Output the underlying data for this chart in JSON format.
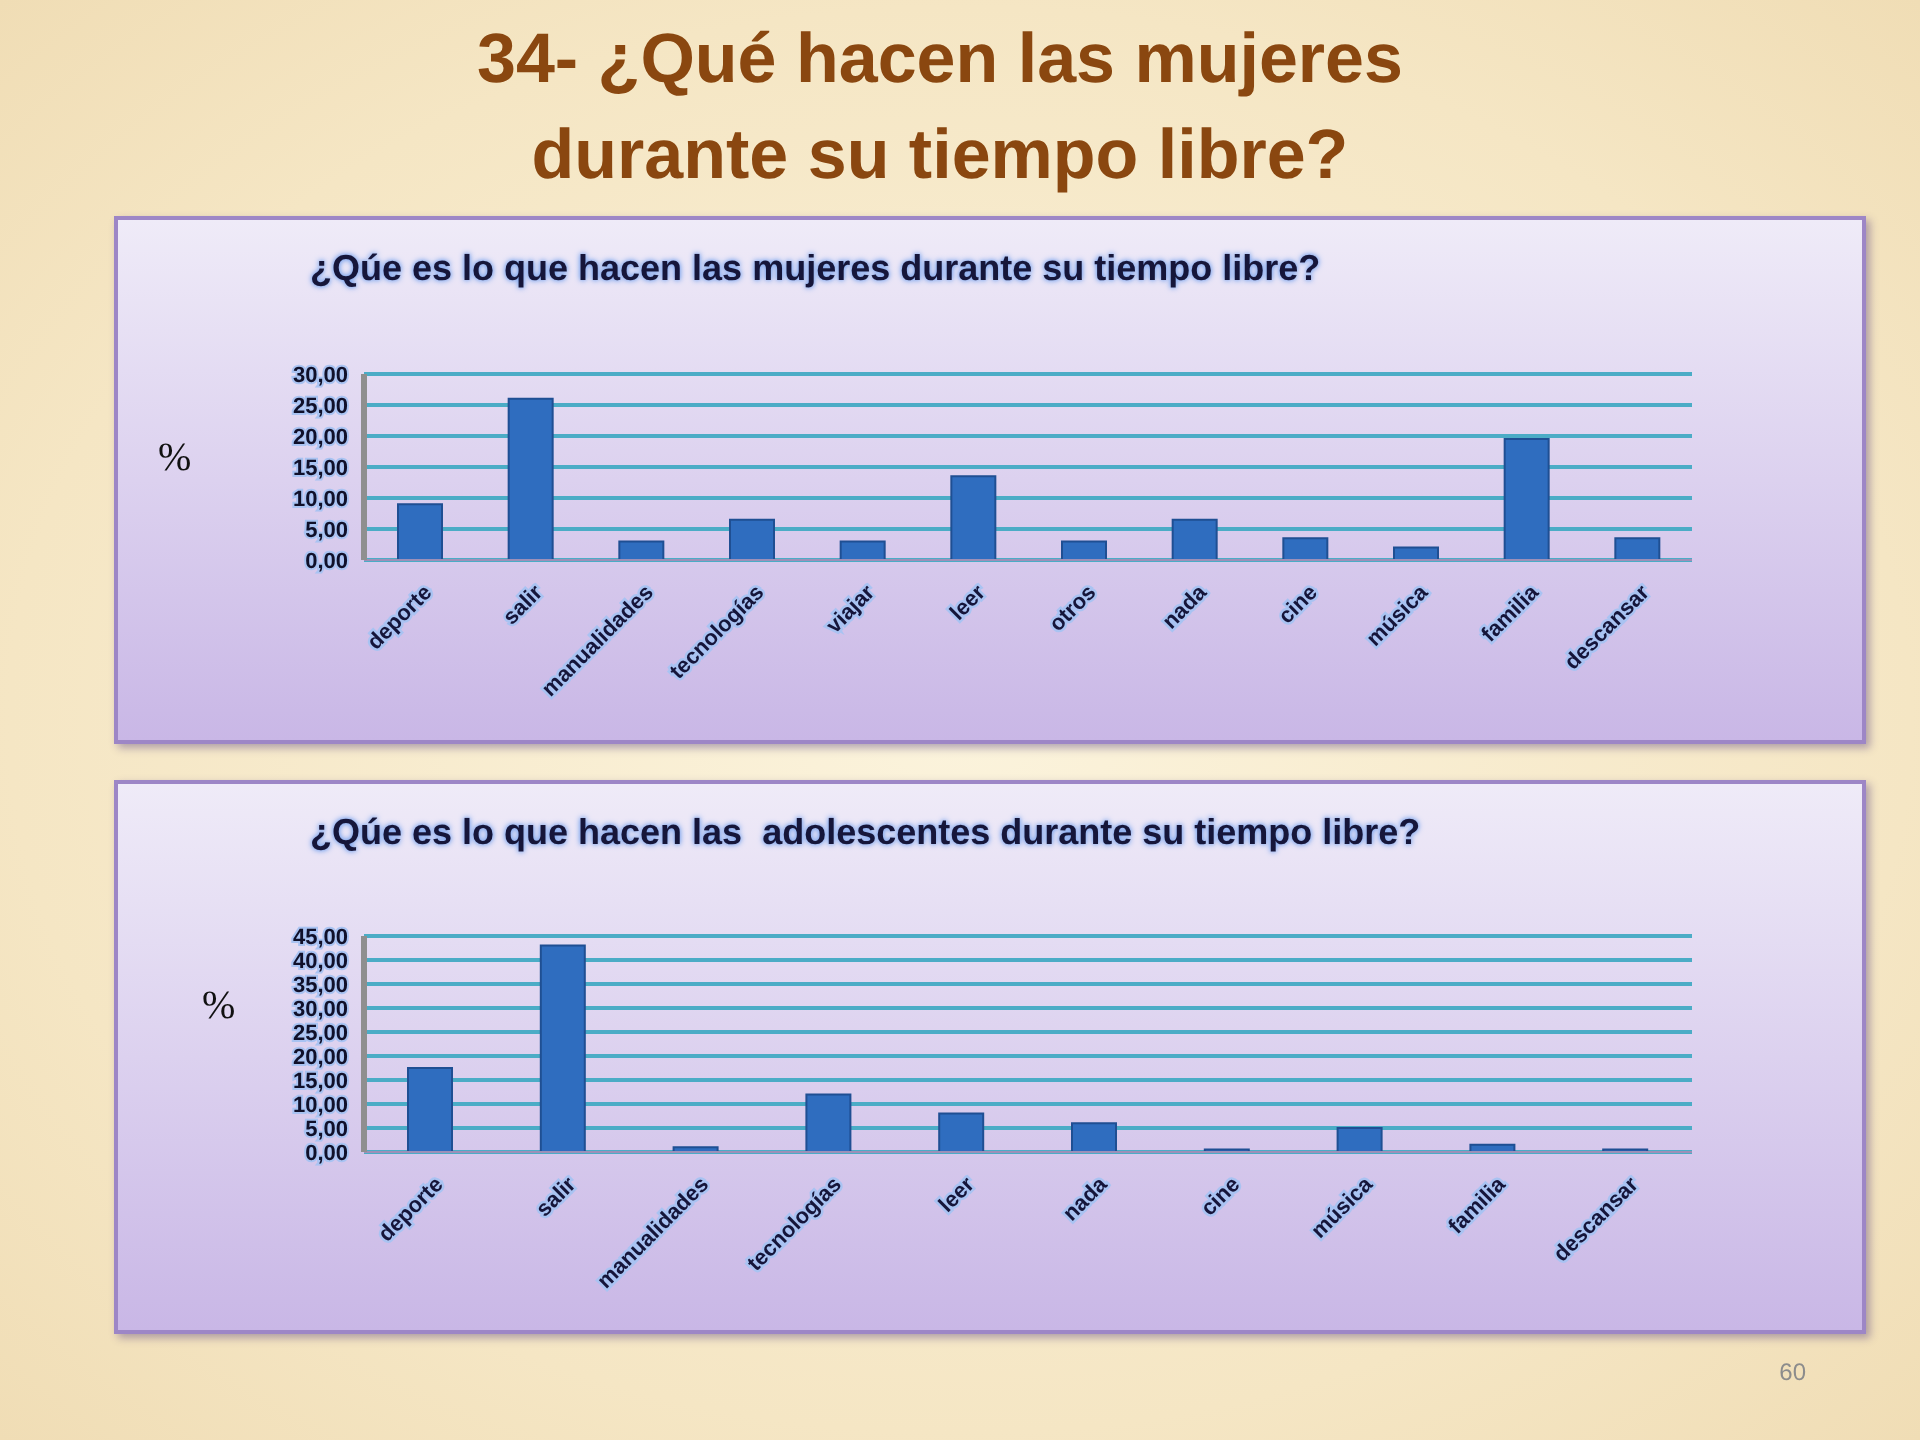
{
  "chart_data": [
    {
      "type": "bar",
      "title": "34- ¿Qué hacen las mujeres durante su tiempo libre?",
      "subtitle": "¿Qúe es lo que hacen las mujeres durante su tiempo libre?",
      "ylabel": "%",
      "categories": [
        "deporte",
        "salir",
        "manualidades",
        "tecnologías",
        "viajar",
        "leer",
        "otros",
        "nada",
        "cine",
        "música",
        "familia",
        "descansar"
      ],
      "values": [
        9,
        26,
        3,
        6.5,
        3,
        13.5,
        3,
        6.5,
        3.5,
        2,
        19.5,
        3.5
      ],
      "color": "#2f6dbf",
      "ylim": [
        0,
        30
      ],
      "yticks": [
        {
          "value": 0,
          "label": "0,00"
        },
        {
          "value": 5,
          "label": "5,00"
        },
        {
          "value": 10,
          "label": "10,00"
        },
        {
          "value": 15,
          "label": "15,00"
        },
        {
          "value": 20,
          "label": "20,00"
        },
        {
          "value": 25,
          "label": "25,00"
        },
        {
          "value": 30,
          "label": "30,00"
        }
      ],
      "grid": "y"
    },
    {
      "type": "bar",
      "title": "¿Qúe es lo que hacen las  adolescentes durante su tiempo libre?",
      "ylabel": "%",
      "categories": [
        "deporte",
        "salir",
        "manualidades",
        "tecnologías",
        "leer",
        "nada",
        "cine",
        "música",
        "familia",
        "descansar"
      ],
      "values": [
        17.5,
        43,
        1,
        12,
        8,
        6,
        0.5,
        5,
        1.5,
        0.5
      ],
      "color": "#2f6dbf",
      "ylim": [
        0,
        45
      ],
      "yticks": [
        {
          "value": 0,
          "label": "0,00"
        },
        {
          "value": 5,
          "label": "5,00"
        },
        {
          "value": 10,
          "label": "10,00"
        },
        {
          "value": 15,
          "label": "15,00"
        },
        {
          "value": 20,
          "label": "20,00"
        },
        {
          "value": 25,
          "label": "25,00"
        },
        {
          "value": 30,
          "label": "30,00"
        },
        {
          "value": 35,
          "label": "35,00"
        },
        {
          "value": 40,
          "label": "40,00"
        },
        {
          "value": 45,
          "label": "45,00"
        }
      ],
      "grid": "y",
      "annotations": [
        "60"
      ]
    }
  ]
}
